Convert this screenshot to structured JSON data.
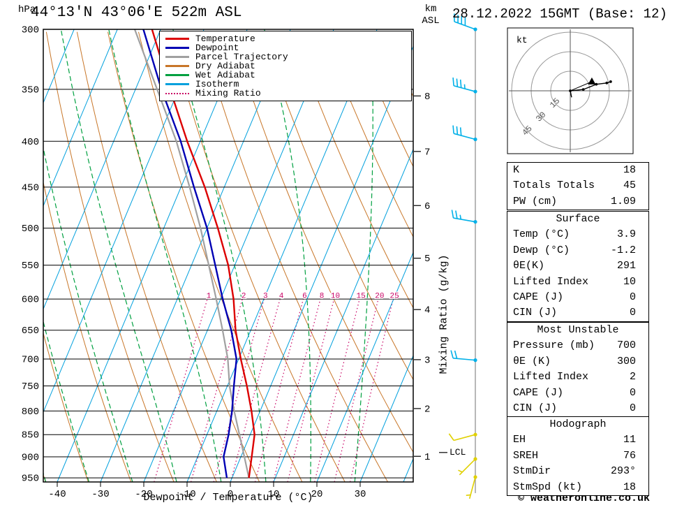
{
  "title": "44°13'N 43°06'E 522m ASL",
  "date_title": "28.12.2022 15GMT (Base: 12)",
  "copyright": "© weatheronline.co.uk",
  "labels": {
    "hpa": "hPa",
    "km": "km",
    "asl": "ASL",
    "mixing_axis": "Mixing Ratio (g/kg)",
    "lcl": "LCL",
    "xaxis": "Dewpoint / Temperature (°C)"
  },
  "hodograph": {
    "unit": "kt"
  },
  "legend": {
    "items": [
      {
        "label": "Temperature",
        "color": "#dc0000",
        "dash": false
      },
      {
        "label": "Dewpoint",
        "color": "#0000b4",
        "dash": false
      },
      {
        "label": "Parcel Trajectory",
        "color": "#a0a0a0",
        "dash": false
      },
      {
        "label": "Dry Adiabat",
        "color": "#c87628",
        "dash": false
      },
      {
        "label": "Wet Adiabat",
        "color": "#00a040",
        "dash": false
      },
      {
        "label": "Isotherm",
        "color": "#00a0dd",
        "dash": false
      },
      {
        "label": "Mixing Ratio",
        "color": "#c80064",
        "dash": true
      }
    ]
  },
  "tables": {
    "indices": {
      "rows": [
        {
          "label": "K",
          "value": "18"
        },
        {
          "label": "Totals Totals",
          "value": "45"
        },
        {
          "label": "PW (cm)",
          "value": "1.09"
        }
      ]
    },
    "surface": {
      "header": "Surface",
      "rows": [
        {
          "label": "Temp (°C)",
          "value": "3.9"
        },
        {
          "label": "Dewp (°C)",
          "value": "-1.2"
        },
        {
          "label": "θE(K)",
          "value": "291"
        },
        {
          "label": "Lifted Index",
          "value": "10"
        },
        {
          "label": "CAPE (J)",
          "value": "0"
        },
        {
          "label": "CIN (J)",
          "value": "0"
        }
      ]
    },
    "most_unstable": {
      "header": "Most Unstable",
      "rows": [
        {
          "label": "Pressure (mb)",
          "value": "700"
        },
        {
          "label": "θE (K)",
          "value": "300"
        },
        {
          "label": "Lifted Index",
          "value": "2"
        },
        {
          "label": "CAPE (J)",
          "value": "0"
        },
        {
          "label": "CIN (J)",
          "value": "0"
        }
      ]
    },
    "hodograph": {
      "header": "Hodograph",
      "rows": [
        {
          "label": "EH",
          "value": "11"
        },
        {
          "label": "SREH",
          "value": "76"
        },
        {
          "label": "StmDir",
          "value": "293°"
        },
        {
          "label": "StmSpd (kt)",
          "value": "18"
        }
      ]
    }
  },
  "chart_data": {
    "type": "skewt_logp_sounding",
    "pressure_ticks_hpa": [
      300,
      350,
      400,
      450,
      500,
      550,
      600,
      650,
      700,
      750,
      800,
      850,
      900,
      950
    ],
    "temp_ticks_c": [
      -40,
      -30,
      -20,
      -10,
      0,
      10,
      20,
      30
    ],
    "km_ticks": [
      1,
      2,
      3,
      4,
      5,
      6,
      7,
      8
    ],
    "mixing_ratio_lines_gkg": [
      1,
      2,
      3,
      4,
      6,
      8,
      10,
      15,
      20,
      25
    ],
    "lcl_pressure_hpa": 890,
    "series": [
      {
        "name": "Parcel Trajectory",
        "color": "#a0a0a0",
        "width": 2.2,
        "points_p_t": [
          [
            950,
            3.9
          ],
          [
            900,
            0.8
          ],
          [
            850,
            -2.5
          ],
          [
            800,
            -6.0
          ],
          [
            750,
            -9.5
          ],
          [
            700,
            -12.5
          ],
          [
            650,
            -16.5
          ],
          [
            600,
            -21.0
          ],
          [
            550,
            -26.0
          ],
          [
            500,
            -31.5
          ],
          [
            450,
            -38.0
          ],
          [
            400,
            -45.5
          ],
          [
            350,
            -55.0
          ],
          [
            300,
            -66.0
          ]
        ]
      },
      {
        "name": "Dewpoint",
        "color": "#0000b4",
        "width": 2.4,
        "points_p_t": [
          [
            950,
            -1.2
          ],
          [
            900,
            -4.0
          ],
          [
            850,
            -5.0
          ],
          [
            800,
            -6.5
          ],
          [
            750,
            -8.5
          ],
          [
            700,
            -10.5
          ],
          [
            650,
            -14.5
          ],
          [
            600,
            -19.5
          ],
          [
            550,
            -24.5
          ],
          [
            500,
            -30.0
          ],
          [
            450,
            -37.0
          ],
          [
            400,
            -44.5
          ],
          [
            350,
            -54.0
          ],
          [
            300,
            -64.0
          ]
        ]
      },
      {
        "name": "Temperature",
        "color": "#dc0000",
        "width": 2.4,
        "points_p_t": [
          [
            950,
            3.9
          ],
          [
            900,
            2.5
          ],
          [
            850,
            1.0
          ],
          [
            800,
            -2.0
          ],
          [
            750,
            -5.5
          ],
          [
            700,
            -9.5
          ],
          [
            650,
            -13.5
          ],
          [
            600,
            -17.0
          ],
          [
            550,
            -21.5
          ],
          [
            500,
            -27.5
          ],
          [
            450,
            -34.5
          ],
          [
            400,
            -43.0
          ],
          [
            350,
            -52.0
          ],
          [
            300,
            -62.0
          ]
        ]
      }
    ],
    "wind_barbs": [
      {
        "p": 300,
        "speed_kt": 40,
        "dir_deg": 290,
        "color": "#00b0e8"
      },
      {
        "p": 352,
        "speed_kt": 35,
        "dir_deg": 285,
        "color": "#00b0e8"
      },
      {
        "p": 398,
        "speed_kt": 30,
        "dir_deg": 285,
        "color": "#00b0e8"
      },
      {
        "p": 492,
        "speed_kt": 25,
        "dir_deg": 280,
        "color": "#00b0e8"
      },
      {
        "p": 702,
        "speed_kt": 20,
        "dir_deg": 275,
        "color": "#00b0e8"
      },
      {
        "p": 850,
        "speed_kt": 10,
        "dir_deg": 255,
        "color": "#e0d000"
      },
      {
        "p": 905,
        "speed_kt": 5,
        "dir_deg": 225,
        "color": "#e0d000"
      },
      {
        "p": 948,
        "speed_kt": 5,
        "dir_deg": 195,
        "color": "#e0d000"
      }
    ],
    "hodograph": {
      "rings_kt": [
        15,
        30,
        45
      ],
      "trace_uv_kt": [
        [
          1,
          -5
        ],
        [
          0,
          0
        ],
        [
          10,
          1
        ],
        [
          20,
          5
        ],
        [
          28,
          6
        ],
        [
          31,
          7
        ]
      ],
      "storm_dir_deg": 293,
      "storm_speed_kt": 18
    },
    "field_line_colors": {
      "isotherm": "#00a0dd",
      "dry_adiabat": "#c87628",
      "wet_adiabat": "#00a040",
      "mixing_ratio": "#c80064"
    }
  }
}
